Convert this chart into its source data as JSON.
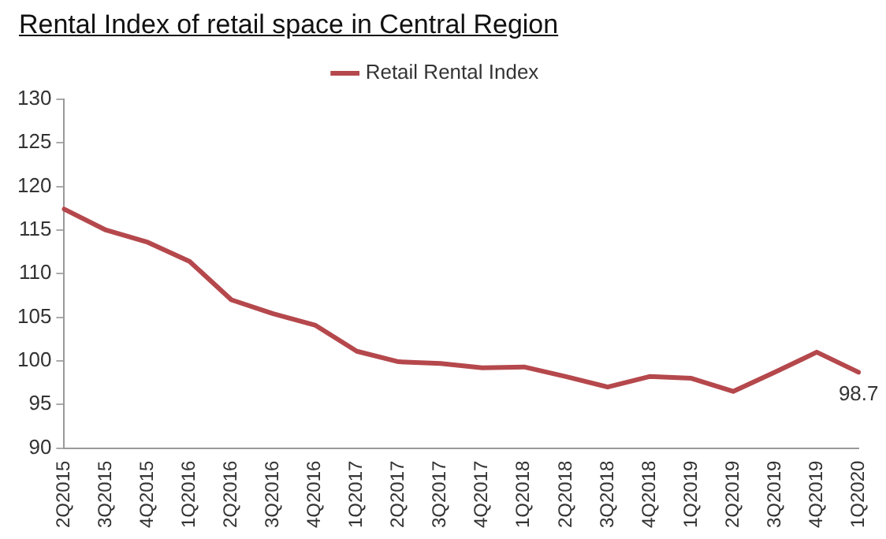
{
  "chart_data": {
    "type": "line",
    "title": "Rental Index of retail space in Central Region",
    "categories": [
      "2Q2015",
      "3Q2015",
      "4Q2015",
      "1Q2016",
      "2Q2016",
      "3Q2016",
      "4Q2016",
      "1Q2017",
      "2Q2017",
      "3Q2017",
      "4Q2017",
      "1Q2018",
      "2Q2018",
      "3Q2018",
      "4Q2018",
      "1Q2019",
      "2Q2019",
      "3Q2019",
      "4Q2019",
      "1Q2020"
    ],
    "series": [
      {
        "name": "Retail Rental Index",
        "color": "#b5484c",
        "values": [
          117.4,
          115.0,
          113.6,
          111.4,
          107.0,
          105.4,
          104.1,
          101.1,
          99.9,
          99.7,
          99.2,
          99.3,
          98.2,
          97.0,
          98.2,
          98.0,
          96.5,
          98.7,
          101.0,
          98.7
        ],
        "value_labels": [
          null,
          null,
          null,
          null,
          null,
          null,
          null,
          null,
          null,
          null,
          null,
          null,
          null,
          null,
          null,
          null,
          null,
          null,
          null,
          "98.7"
        ]
      }
    ],
    "ylim": [
      90,
      130
    ],
    "yticks": [
      90,
      95,
      100,
      105,
      110,
      115,
      120,
      125,
      130
    ],
    "grid": false,
    "legend": "top",
    "marker": "none",
    "line_style": "solid"
  }
}
